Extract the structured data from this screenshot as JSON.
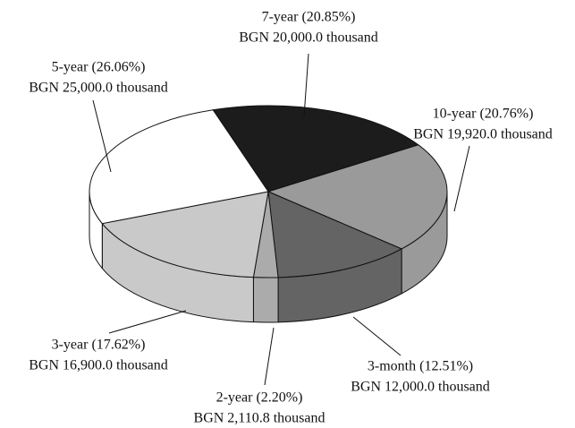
{
  "chart_data": {
    "type": "pie",
    "values": [
      20.85,
      20.76,
      12.51,
      2.2,
      17.62,
      26.06
    ],
    "value_labels": [
      "7-year (20.85%)",
      "10-year (20.76%)",
      "3-month (12.51%)",
      "2-year (2.20%)",
      "3-year (17.62%)",
      "5-year (26.06%)"
    ],
    "amount_labels": [
      "BGN 20,000.0 thousand",
      "BGN 19,920.0 thousand",
      "BGN 12,000.0 thousand",
      "BGN 2,110.8 thousand",
      "BGN 16,900.0 thousand",
      "BGN 25,000.0 thousand"
    ],
    "colors": [
      "#1c1c1c",
      "#9a9a9a",
      "#646464",
      "#ababab",
      "#c9c9c9",
      "#ffffff"
    ]
  }
}
